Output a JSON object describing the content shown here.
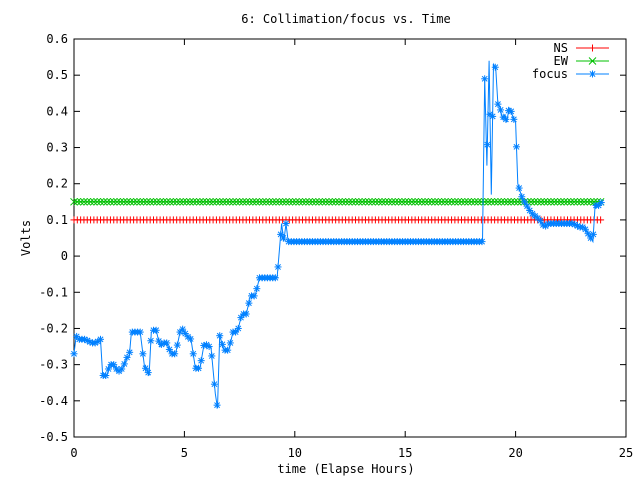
{
  "chart_data": {
    "type": "line",
    "title": "6: Collimation/focus vs. Time",
    "xlabel": "time (Elapse Hours)",
    "ylabel": "Volts",
    "xlim": [
      0,
      25
    ],
    "ylim": [
      -0.5,
      0.6
    ],
    "xticks": [
      0,
      5,
      10,
      15,
      20,
      25
    ],
    "yticks": [
      -0.5,
      -0.4,
      -0.3,
      -0.2,
      -0.1,
      0,
      0.1,
      0.2,
      0.3,
      0.4,
      0.5,
      0.6
    ],
    "xtick_labels": [
      "0",
      "5",
      "10",
      "15",
      "20",
      "25"
    ],
    "ytick_labels": [
      "-0.5",
      "-0.4",
      "-0.3",
      "-0.2",
      "-0.1",
      "0",
      "0.1",
      "0.2",
      "0.3",
      "0.4",
      "0.5",
      "0.6"
    ],
    "grid": false,
    "legend_position": "top-right",
    "series": [
      {
        "name": "NS",
        "color": "#ff0000",
        "marker": "plus",
        "x": [
          0,
          23.9
        ],
        "y": [
          0.1,
          0.1
        ],
        "marker_step": 0.15
      },
      {
        "name": "EW",
        "color": "#00c000",
        "marker": "cross",
        "x": [
          0,
          23.9
        ],
        "y": [
          0.15,
          0.15
        ],
        "marker_step": 0.15
      },
      {
        "name": "focus",
        "color": "#0080ff",
        "marker": "star",
        "x": [
          0,
          0.1,
          0.2,
          0.5,
          0.8,
          1.0,
          1.2,
          1.3,
          1.5,
          1.6,
          1.8,
          2.0,
          2.2,
          2.4,
          2.5,
          2.6,
          2.8,
          3.0,
          3.2,
          3.3,
          3.4,
          3.5,
          3.7,
          3.9,
          4.0,
          4.2,
          4.4,
          4.6,
          4.8,
          4.9,
          5.1,
          5.3,
          5.5,
          5.7,
          5.9,
          6.1,
          6.2,
          6.4,
          6.5,
          6.6,
          6.8,
          7.0,
          7.2,
          7.4,
          7.6,
          7.8,
          8.0,
          8.2,
          8.4,
          8.6,
          8.8,
          9.0,
          9.2,
          9.4,
          9.5,
          9.6,
          9.7,
          9.8,
          10.0,
          11.0,
          12.0,
          13.0,
          14.0,
          15.0,
          16.0,
          17.0,
          18.0,
          18.5,
          18.6,
          18.7,
          18.8,
          18.9,
          19.0,
          19.1,
          19.2,
          19.3,
          19.4,
          19.5,
          19.6,
          19.7,
          19.8,
          19.9,
          20.0,
          20.1,
          20.2,
          20.3,
          20.5,
          20.7,
          20.9,
          21.1,
          21.3,
          21.5,
          21.7,
          22.0,
          22.3,
          22.6,
          22.9,
          23.1,
          23.3,
          23.5,
          23.6,
          23.8,
          23.9
        ],
        "y": [
          -0.27,
          -0.22,
          -0.23,
          -0.23,
          -0.24,
          -0.24,
          -0.23,
          -0.33,
          -0.33,
          -0.3,
          -0.3,
          -0.32,
          -0.31,
          -0.28,
          -0.28,
          -0.21,
          -0.21,
          -0.21,
          -0.31,
          -0.31,
          -0.33,
          -0.21,
          -0.2,
          -0.25,
          -0.24,
          -0.24,
          -0.27,
          -0.27,
          -0.21,
          -0.2,
          -0.22,
          -0.23,
          -0.31,
          -0.31,
          -0.24,
          -0.25,
          -0.25,
          -0.38,
          -0.42,
          -0.22,
          -0.26,
          -0.26,
          -0.21,
          -0.21,
          -0.16,
          -0.16,
          -0.11,
          -0.11,
          -0.06,
          -0.06,
          -0.06,
          -0.06,
          -0.06,
          0.09,
          0.04,
          0.09,
          0.04,
          0.04,
          0.04,
          0.04,
          0.04,
          0.04,
          0.04,
          0.04,
          0.04,
          0.04,
          0.04,
          0.04,
          0.49,
          0.25,
          0.54,
          0.17,
          0.53,
          0.52,
          0.42,
          0.41,
          0.38,
          0.39,
          0.37,
          0.41,
          0.4,
          0.38,
          0.37,
          0.2,
          0.18,
          0.16,
          0.14,
          0.12,
          0.11,
          0.1,
          0.08,
          0.09,
          0.09,
          0.09,
          0.09,
          0.09,
          0.08,
          0.08,
          0.06,
          0.04,
          0.14,
          0.14,
          0.15
        ],
        "marker_step": 0.12
      }
    ]
  }
}
